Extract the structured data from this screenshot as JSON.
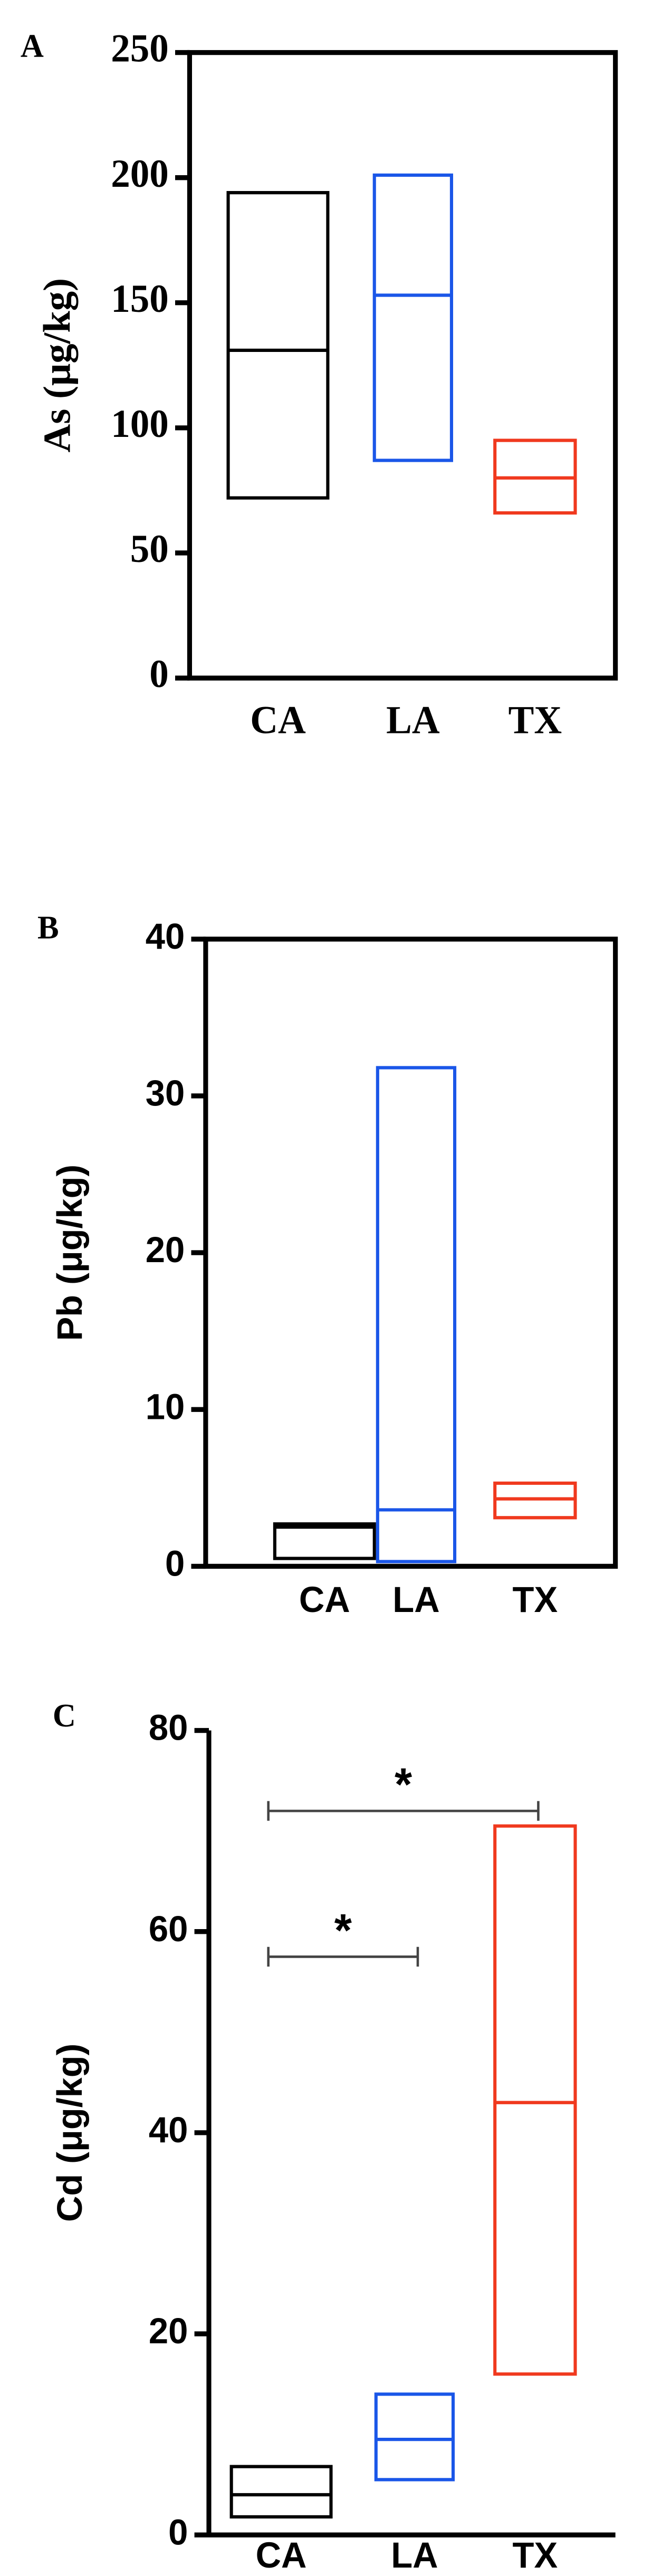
{
  "chart_data": [
    {
      "type": "box",
      "panel_label": "A",
      "ylabel": "As (μg/kg)",
      "categories": [
        "CA",
        "LA",
        "TX"
      ],
      "low": [
        72,
        87,
        66
      ],
      "median": [
        131,
        153,
        80
      ],
      "high": [
        194,
        201,
        95
      ],
      "colors": [
        "#000000",
        "#1a56e8",
        "#f0391e"
      ],
      "ylim": [
        0,
        250
      ],
      "yticks": [
        0,
        50,
        100,
        150,
        200,
        250
      ],
      "frame": true
    },
    {
      "type": "box",
      "panel_label": "B",
      "ylabel": "Pb (μg/kg)",
      "categories": [
        "CA",
        "LA",
        "TX"
      ],
      "low": [
        0.5,
        0.3,
        3.1
      ],
      "median": [
        2.5,
        3.6,
        4.3
      ],
      "high": [
        2.7,
        31.8,
        5.3
      ],
      "colors": [
        "#000000",
        "#1a56e8",
        "#f0391e"
      ],
      "ylim": [
        0,
        40
      ],
      "yticks": [
        0,
        10,
        20,
        30,
        40
      ],
      "frame": true
    },
    {
      "type": "box",
      "panel_label": "C",
      "ylabel": "Cd (μg/kg)",
      "categories": [
        "CA",
        "LA",
        "TX"
      ],
      "low": [
        1.8,
        5.5,
        16
      ],
      "median": [
        4,
        9.5,
        43
      ],
      "high": [
        6.8,
        14,
        70.5
      ],
      "colors": [
        "#000000",
        "#1a56e8",
        "#f0391e"
      ],
      "ylim": [
        0,
        80
      ],
      "yticks": [
        0,
        20,
        40,
        60,
        80
      ],
      "frame": false,
      "annotations": [
        {
          "from": 0,
          "to": 2,
          "y": 72,
          "label": "*"
        },
        {
          "from": 0,
          "to": 1,
          "y": 57.5,
          "label": "*"
        }
      ]
    }
  ]
}
